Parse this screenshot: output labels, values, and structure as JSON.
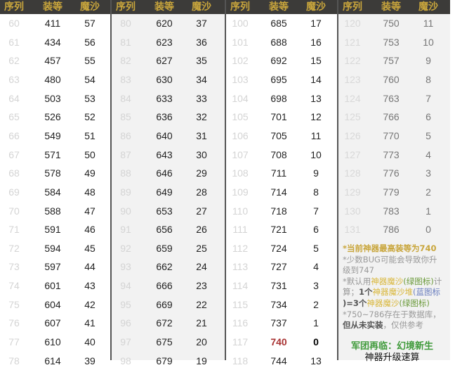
{
  "headers": [
    "序列",
    "装等",
    "魔沙"
  ],
  "groups": [
    [
      [
        60,
        411,
        57
      ],
      [
        61,
        434,
        56
      ],
      [
        62,
        457,
        55
      ],
      [
        63,
        480,
        54
      ],
      [
        64,
        503,
        53
      ],
      [
        65,
        526,
        52
      ],
      [
        66,
        549,
        51
      ],
      [
        67,
        571,
        50
      ],
      [
        68,
        578,
        49
      ],
      [
        69,
        584,
        48
      ],
      [
        70,
        588,
        47
      ],
      [
        71,
        591,
        46
      ],
      [
        72,
        594,
        45
      ],
      [
        73,
        597,
        44
      ],
      [
        74,
        601,
        43
      ],
      [
        75,
        604,
        42
      ],
      [
        76,
        607,
        41
      ],
      [
        77,
        610,
        40
      ],
      [
        78,
        614,
        39
      ]
    ],
    [
      [
        80,
        620,
        37
      ],
      [
        81,
        623,
        36
      ],
      [
        82,
        627,
        35
      ],
      [
        83,
        630,
        34
      ],
      [
        84,
        633,
        33
      ],
      [
        85,
        636,
        32
      ],
      [
        86,
        640,
        31
      ],
      [
        87,
        643,
        30
      ],
      [
        88,
        646,
        29
      ],
      [
        89,
        649,
        28
      ],
      [
        90,
        653,
        27
      ],
      [
        91,
        656,
        26
      ],
      [
        92,
        659,
        25
      ],
      [
        93,
        662,
        24
      ],
      [
        94,
        666,
        23
      ],
      [
        95,
        669,
        22
      ],
      [
        96,
        672,
        21
      ],
      [
        97,
        675,
        20
      ],
      [
        98,
        679,
        19
      ]
    ],
    [
      [
        100,
        685,
        17
      ],
      [
        101,
        688,
        16
      ],
      [
        102,
        692,
        15
      ],
      [
        103,
        695,
        14
      ],
      [
        104,
        698,
        13
      ],
      [
        105,
        701,
        12
      ],
      [
        106,
        705,
        11
      ],
      [
        107,
        708,
        10
      ],
      [
        108,
        711,
        9
      ],
      [
        109,
        714,
        8
      ],
      [
        110,
        718,
        7
      ],
      [
        111,
        721,
        6
      ],
      [
        112,
        724,
        5
      ],
      [
        113,
        727,
        4
      ],
      [
        114,
        731,
        3
      ],
      [
        115,
        734,
        2
      ],
      [
        116,
        737,
        1
      ],
      [
        117,
        740,
        0
      ],
      [
        118,
        744,
        13
      ]
    ],
    [
      [
        120,
        750,
        11
      ],
      [
        121,
        753,
        10
      ],
      [
        122,
        757,
        9
      ],
      [
        123,
        760,
        8
      ],
      [
        124,
        763,
        7
      ],
      [
        125,
        766,
        6
      ],
      [
        126,
        770,
        5
      ],
      [
        127,
        773,
        4
      ],
      [
        128,
        776,
        3
      ],
      [
        129,
        779,
        2
      ],
      [
        130,
        783,
        1
      ],
      [
        131,
        786,
        0
      ]
    ]
  ],
  "highlight_seq": 117,
  "colors": {
    "header_bg": "#3c3b39",
    "header_text": "#c9a63c",
    "highlight": "#a83232",
    "title_green": "#3f9a3a"
  },
  "notes": {
    "n1": "*当前神器最高装等为740",
    "n2a": "*少数BUG可能会导致你升",
    "n2b": "级到747",
    "n3a": "*默认用",
    "n3b": "神器魔沙",
    "n3c": "(绿图标)",
    "n3d": "计",
    "n4a": "算；",
    "n4b": "1个",
    "n4c": "神器魔沙堆",
    "n4d": "(蓝图标",
    "n5a": ")=3个",
    "n5b": "神器魔沙",
    "n5c": "(绿图标)",
    "n6": "*750~786存在于数据库，",
    "n7a": "但从未实装",
    "n7b": "，仅供参考"
  },
  "title1": "军团再临：幻境新生",
  "title2": "神器升级速算"
}
